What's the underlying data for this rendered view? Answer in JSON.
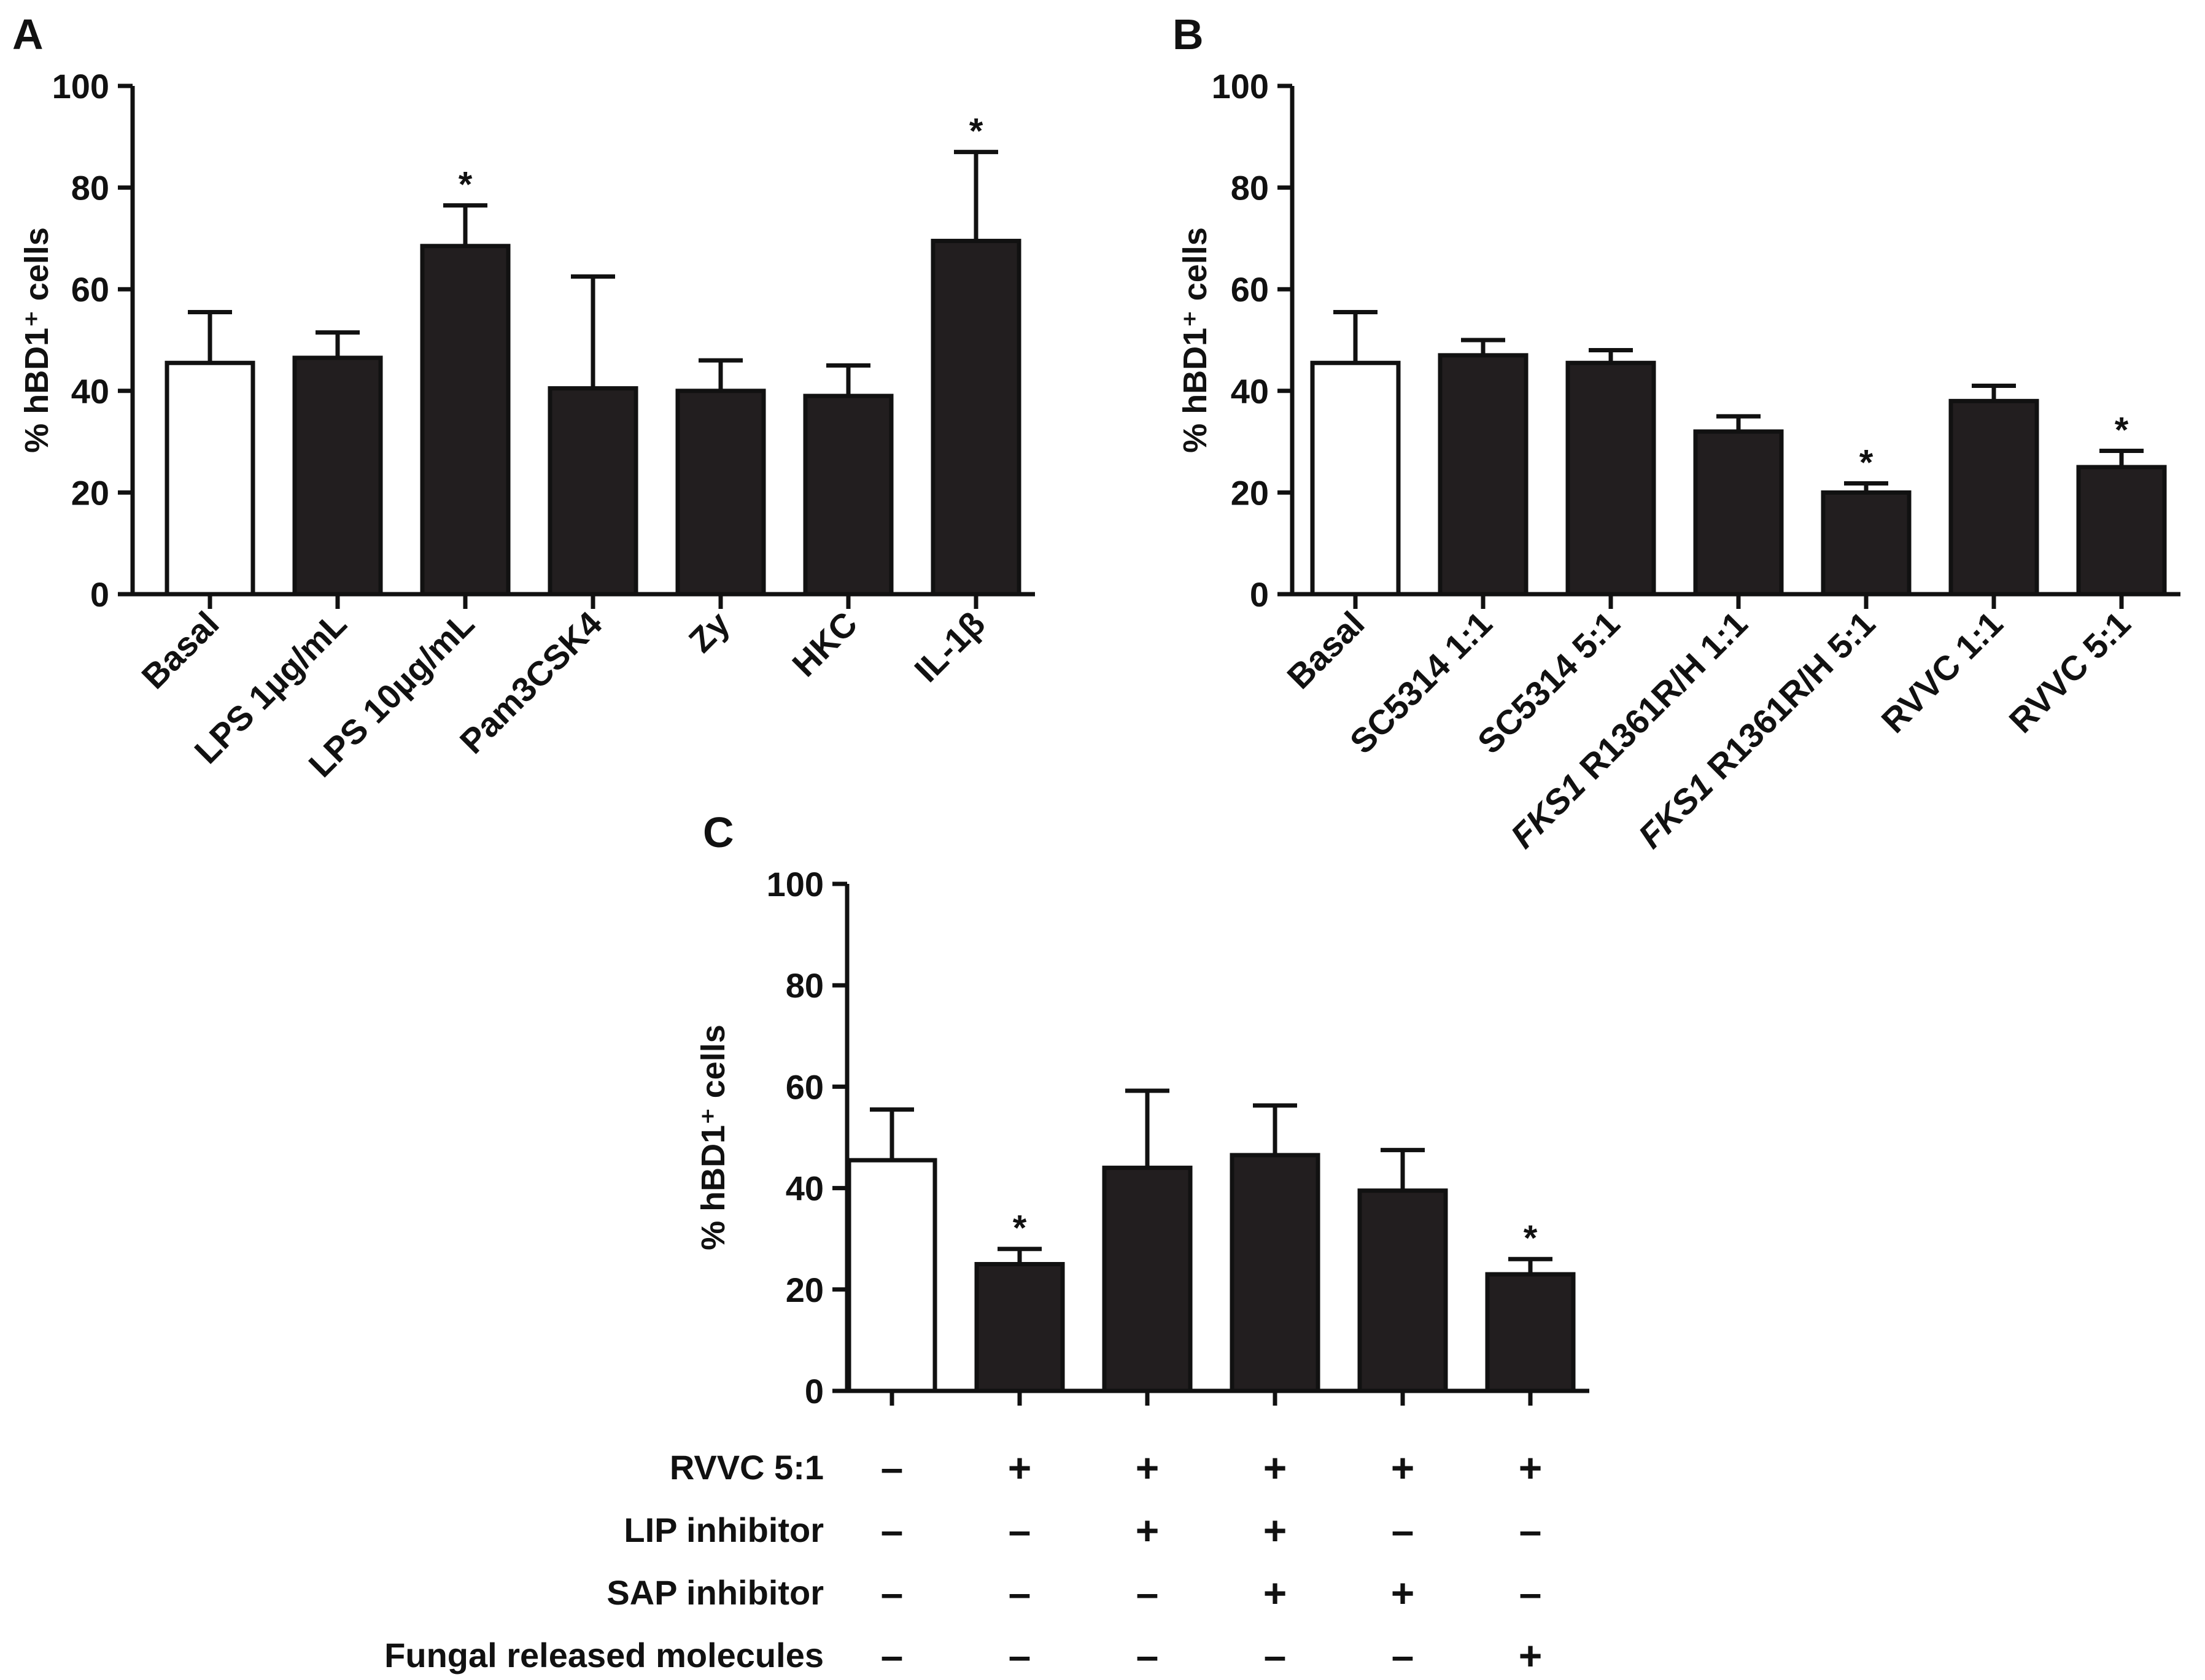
{
  "colors": {
    "bar_filled": "#221e1f",
    "bar_open": "#ffffff",
    "axis": "#111111"
  },
  "chart_data": [
    {
      "panel": "A",
      "type": "bar",
      "ylabel": "% hBD1⁺ cells",
      "ylim": [
        0,
        100
      ],
      "yticks": [
        0,
        20,
        40,
        60,
        80,
        100
      ],
      "categories": [
        "Basal",
        "LPS 1µg/mL",
        "LPS 10µg/mL",
        "Pam3CSK4",
        "Zy",
        "HKC",
        "IL-1β"
      ],
      "values": [
        45.5,
        46.5,
        68.5,
        40.5,
        40,
        39,
        69.5
      ],
      "errors": [
        10,
        5,
        8,
        22,
        6,
        6,
        17.5
      ],
      "filled": [
        false,
        true,
        true,
        true,
        true,
        true,
        true
      ],
      "significant": [
        false,
        false,
        true,
        false,
        false,
        false,
        true
      ],
      "significance_marker": "*"
    },
    {
      "panel": "B",
      "type": "bar",
      "ylabel": "% hBD1⁺ cells",
      "ylim": [
        0,
        100
      ],
      "yticks": [
        0,
        20,
        40,
        60,
        80,
        100
      ],
      "categories": [
        "Basal",
        "SC5314 1:1",
        "SC5314 5:1",
        "FKS1 R1361R/H 1:1",
        "FKS1 R1361R/H 5:1",
        "RVVC 1:1",
        "RVVC 5:1"
      ],
      "italic_prefix": [
        "",
        "",
        "",
        "FKS1",
        "FKS1",
        "",
        ""
      ],
      "values": [
        45.5,
        47,
        45.5,
        32,
        20,
        38,
        25
      ],
      "errors": [
        10,
        3,
        2.5,
        3,
        1.8,
        3,
        3.2
      ],
      "filled": [
        false,
        true,
        true,
        true,
        true,
        true,
        true
      ],
      "significant": [
        false,
        false,
        false,
        false,
        true,
        false,
        true
      ],
      "significance_marker": "*"
    },
    {
      "panel": "C",
      "type": "bar",
      "ylabel": "% hBD1⁺ cells",
      "ylim": [
        0,
        100
      ],
      "yticks": [
        0,
        20,
        40,
        60,
        80,
        100
      ],
      "values": [
        45.5,
        25,
        44,
        46.5,
        39.5,
        23
      ],
      "errors": [
        10,
        3,
        15.2,
        9.8,
        8,
        3
      ],
      "filled": [
        false,
        true,
        true,
        true,
        true,
        true
      ],
      "significant": [
        false,
        true,
        false,
        false,
        false,
        true
      ],
      "significance_marker": "*",
      "condition_rows": [
        {
          "label": "RVVC 5:1",
          "signs": [
            "–",
            "+",
            "+",
            "+",
            "+",
            "+"
          ]
        },
        {
          "label": "LIP inhibitor",
          "signs": [
            "–",
            "–",
            "+",
            "+",
            "–",
            "–"
          ]
        },
        {
          "label": "SAP inhibitor",
          "signs": [
            "–",
            "–",
            "–",
            "+",
            "+",
            "–"
          ]
        },
        {
          "label": "Fungal released molecules",
          "signs": [
            "–",
            "–",
            "–",
            "–",
            "–",
            "+"
          ]
        }
      ]
    }
  ]
}
